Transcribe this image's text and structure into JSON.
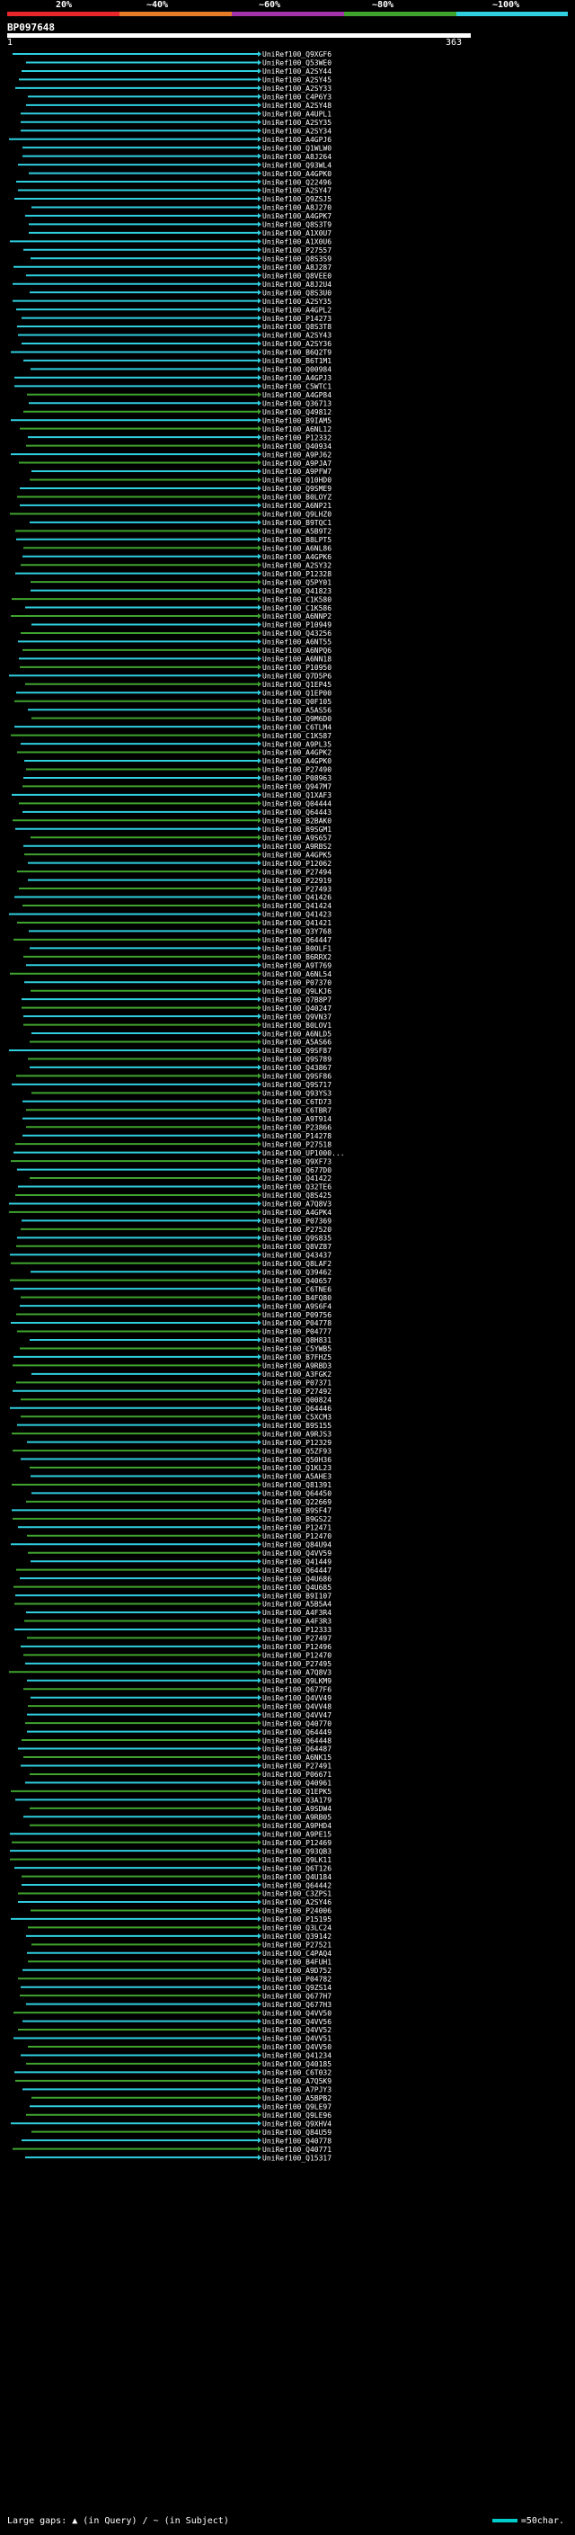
{
  "legend": {
    "labels": [
      "20%",
      "~40%",
      "~60%",
      "~80%",
      "~100%"
    ],
    "colors": [
      "#e8262b",
      "#e47b27",
      "#a333a8",
      "#3fa32e",
      "#2fcfe0"
    ]
  },
  "query": {
    "title": "BP097648",
    "start": "1",
    "end": "363"
  },
  "hits": [
    "UniRef100_Q9XGF6",
    "UniRef100_Q53WE0",
    "UniRef100_A2SY44",
    "UniRef100_A2SY45",
    "UniRef100_A2SY33",
    "UniRef100_C4P6Y3",
    "UniRef100_A2SY48",
    "UniRef100_A4UPL1",
    "UniRef100_A2SY35",
    "UniRef100_A2SY34",
    "UniRef100_A4GPJ6",
    "UniRef100_Q1WLW0",
    "UniRef100_A8J264",
    "UniRef100_Q93WL4",
    "UniRef100_A4GPK0",
    "UniRef100_Q22496",
    "UniRef100_A2SY47",
    "UniRef100_Q9ZSJ5",
    "UniRef100_A8J270",
    "UniRef100_A4GPK7",
    "UniRef100_Q8S3T9",
    "UniRef100_A1X0U7",
    "UniRef100_A1X0U6",
    "UniRef100_P27557",
    "UniRef100_Q8S3S9",
    "UniRef100_A8J287",
    "UniRef100_Q8VEE0",
    "UniRef100_A8J2U4",
    "UniRef100_Q8S3U0",
    "UniRef100_A2SY35",
    "UniRef100_A4GPL2",
    "UniRef100_P14273",
    "UniRef100_Q8S3T8",
    "UniRef100_A2SY43",
    "UniRef100_A2SY36",
    "UniRef100_B6Q2T9",
    "UniRef100_B6T1M1",
    "UniRef100_Q00984",
    "UniRef100_A4GPJ3",
    "UniRef100_C5WTC1",
    "UniRef100_A4GP84",
    "UniRef100_Q36713",
    "UniRef100_Q49812",
    "UniRef100_B9IAM5",
    "UniRef100_A6NL12",
    "UniRef100_P12332",
    "UniRef100_Q40934",
    "UniRef100_A9PJ62",
    "UniRef100_A9PJA7",
    "UniRef100_A9PFW7",
    "UniRef100_Q10HD0",
    "UniRef100_Q9SME9",
    "UniRef100_B0LOYZ",
    "UniRef100_A6NP21",
    "UniRef100_Q9LHZ0",
    "UniRef100_B9TQC1",
    "UniRef100_A5B9T2",
    "UniRef100_B8LPT5",
    "UniRef100_A6NL86",
    "UniRef100_A4GPK6",
    "UniRef100_A2SY32",
    "UniRef100_P12328",
    "UniRef100_Q5PY01",
    "UniRef100_Q41823",
    "UniRef100_C1K580",
    "UniRef100_C1K586",
    "UniRef100_A6NNP2",
    "UniRef100_P10949",
    "UniRef100_Q43256",
    "UniRef100_A6NT55",
    "UniRef100_A6NPQ6",
    "UniRef100_A6NN18",
    "UniRef100_P10950",
    "UniRef100_Q7D5P6",
    "UniRef100_Q1EP45",
    "UniRef100_Q1EP00",
    "UniRef100_Q0F105",
    "UniRef100_A5AS56",
    "UniRef100_Q9M6D0",
    "UniRef100_C6TLM4",
    "UniRef100_C1K587",
    "UniRef100_A9PL35",
    "UniRef100_A4GPK2",
    "UniRef100_A4GPK0",
    "UniRef100_P27490",
    "UniRef100_P08963",
    "UniRef100_Q947M7",
    "UniRef100_Q1XAF3",
    "UniRef100_Q04444",
    "UniRef100_Q64443",
    "UniRef100_B2BAK0",
    "UniRef100_B9SGM1",
    "UniRef100_A9S657",
    "UniRef100_A9RBS2",
    "UniRef100_A4GPK5",
    "UniRef100_P12062",
    "UniRef100_P27494",
    "UniRef100_P22919",
    "UniRef100_P27493",
    "UniRef100_Q41426",
    "UniRef100_Q41424",
    "UniRef100_Q41423",
    "UniRef100_Q41421",
    "UniRef100_Q3Y768",
    "UniRef100_Q64447",
    "UniRef100_B0OLF1",
    "UniRef100_B6RRX2",
    "UniRef100_A9T769",
    "UniRef100_A6NL54",
    "UniRef100_P07370",
    "UniRef100_Q9LKJ6",
    "UniRef100_Q7B8P7",
    "UniRef100_Q40247",
    "UniRef100_Q9VN37",
    "UniRef100_B0LOV1",
    "UniRef100_A6NLD5",
    "UniRef100_A5AS66",
    "UniRef100_Q9SF87",
    "UniRef100_Q9S789",
    "UniRef100_Q43867",
    "UniRef100_Q9SF86",
    "UniRef100_Q9S717",
    "UniRef100_Q93YS3",
    "UniRef100_C6TD73",
    "UniRef100_C6TBR7",
    "UniRef100_A9T914",
    "UniRef100_P23866",
    "UniRef100_P14278",
    "UniRef100_P27518",
    "UniRef100_UP1000...",
    "UniRef100_Q9XF73",
    "UniRef100_Q677D0",
    "UniRef100_Q41422",
    "UniRef100_Q32TE6",
    "UniRef100_Q8S425",
    "UniRef100_A7Q8V3",
    "UniRef100_A4GPK4",
    "UniRef100_P07369",
    "UniRef100_P27520",
    "UniRef100_Q9S835",
    "UniRef100_Q8VZ87",
    "UniRef100_Q43437",
    "UniRef100_Q8LAF2",
    "UniRef100_Q39462",
    "UniRef100_Q40657",
    "UniRef100_C6TNE6",
    "UniRef100_B4FQ80",
    "UniRef100_A9S6F4",
    "UniRef100_P09756",
    "UniRef100_P04778",
    "UniRef100_P04777",
    "UniRef100_Q8H831",
    "UniRef100_C5YWB5",
    "UniRef100_B7FHZ5",
    "UniRef100_A9RBD3",
    "UniRef100_A3FGK2",
    "UniRef100_P07371",
    "UniRef100_P27492",
    "UniRef100_Q00824",
    "UniRef100_Q64446",
    "UniRef100_C5XCM3",
    "UniRef100_B9S155",
    "UniRef100_A9RJS3",
    "UniRef100_P12329",
    "UniRef100_Q5ZF93",
    "UniRef100_Q50H36",
    "UniRef100_Q1KL23",
    "UniRef100_A5AHE3",
    "UniRef100_Q81391",
    "UniRef100_Q64450",
    "UniRef100_Q22669",
    "UniRef100_B9SF47",
    "UniRef100_B9GS22",
    "UniRef100_P12471",
    "UniRef100_P12470",
    "UniRef100_Q84U94",
    "UniRef100_Q4VV59",
    "UniRef100_Q41449",
    "UniRef100_Q64447",
    "UniRef100_Q4U686",
    "UniRef100_Q4U685",
    "UniRef100_B9I107",
    "UniRef100_A5B5A4",
    "UniRef100_A4F3R4",
    "UniRef100_A4F3R3",
    "UniRef100_P12333",
    "UniRef100_P27497",
    "UniRef100_P12496",
    "UniRef100_P12470",
    "UniRef100_P27495",
    "UniRef100_A7Q8V3",
    "UniRef100_Q9LKM9",
    "UniRef100_Q677F6",
    "UniRef100_Q4VV49",
    "UniRef100_Q4VV48",
    "UniRef100_Q4VV47",
    "UniRef100_Q40770",
    "UniRef100_Q64449",
    "UniRef100_Q64448",
    "UniRef100_Q64487",
    "UniRef100_A6NK15",
    "UniRef100_P27491",
    "UniRef100_P06671",
    "UniRef100_Q40961",
    "UniRef100_Q1EPK5",
    "UniRef100_Q3A179",
    "UniRef100_A9SDW4",
    "UniRef100_A9RB05",
    "UniRef100_A9PHD4",
    "UniRef100_A9PE15",
    "UniRef100_P12469",
    "UniRef100_Q93QB3",
    "UniRef100_Q9LK11",
    "UniRef100_Q6T126",
    "UniRef100_Q4U184",
    "UniRef100_Q64442",
    "UniRef100_C3ZPS1",
    "UniRef100_A2SY46",
    "UniRef100_P24006",
    "UniRef100_P15195",
    "UniRef100_Q3LC24",
    "UniRef100_Q39142",
    "UniRef100_P27521",
    "UniRef100_C4PAQ4",
    "UniRef100_B4FUH1",
    "UniRef100_A9D752",
    "UniRef100_P04782",
    "UniRef100_Q9ZS14",
    "UniRef100_Q677H7",
    "UniRef100_Q677H3",
    "UniRef100_Q4VV50",
    "UniRef100_Q4VV56",
    "UniRef100_Q4VV52",
    "UniRef100_Q4VV51",
    "UniRef100_Q4VV50",
    "UniRef100_Q41234",
    "UniRef100_Q40185",
    "UniRef100_C6T032",
    "UniRef100_A7Q5K9",
    "UniRef100_A7PJY3",
    "UniRef100_A5BPB2",
    "UniRef100_Q9LE97",
    "UniRef100_Q9LE96",
    "UniRef100_Q9XHV4",
    "UniRef100_Q84U59",
    "UniRef100_Q40778",
    "UniRef100_Q40771",
    "UniRef100_Q15317"
  ],
  "footer": {
    "gaps_text": "Large gaps: ▲ (in Query) / ~ (in Subject)",
    "scale_text": "=50char."
  }
}
